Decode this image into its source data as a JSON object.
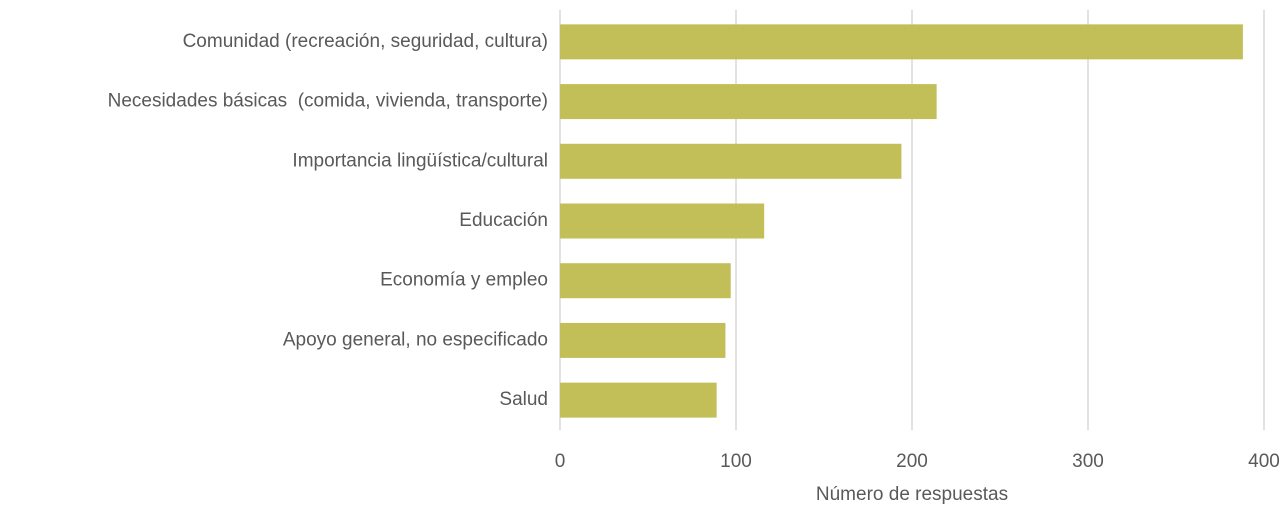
{
  "chart_data": {
    "type": "bar",
    "orientation": "horizontal",
    "categories": [
      "Comunidad (recreación, seguridad, cultura)",
      "Necesidades básicas  (comida, vivienda, transporte)",
      "Importancia lingüística/cultural",
      "Educación",
      "Economía y empleo",
      "Apoyo general, no especificado",
      "Salud"
    ],
    "values": [
      388,
      214,
      194,
      116,
      97,
      94,
      89
    ],
    "color": "#c2bf59",
    "xlabel": "Número de respuestas",
    "xlim": [
      0,
      400
    ],
    "xticks": [
      0,
      100,
      200,
      300,
      400
    ],
    "grid": true
  }
}
